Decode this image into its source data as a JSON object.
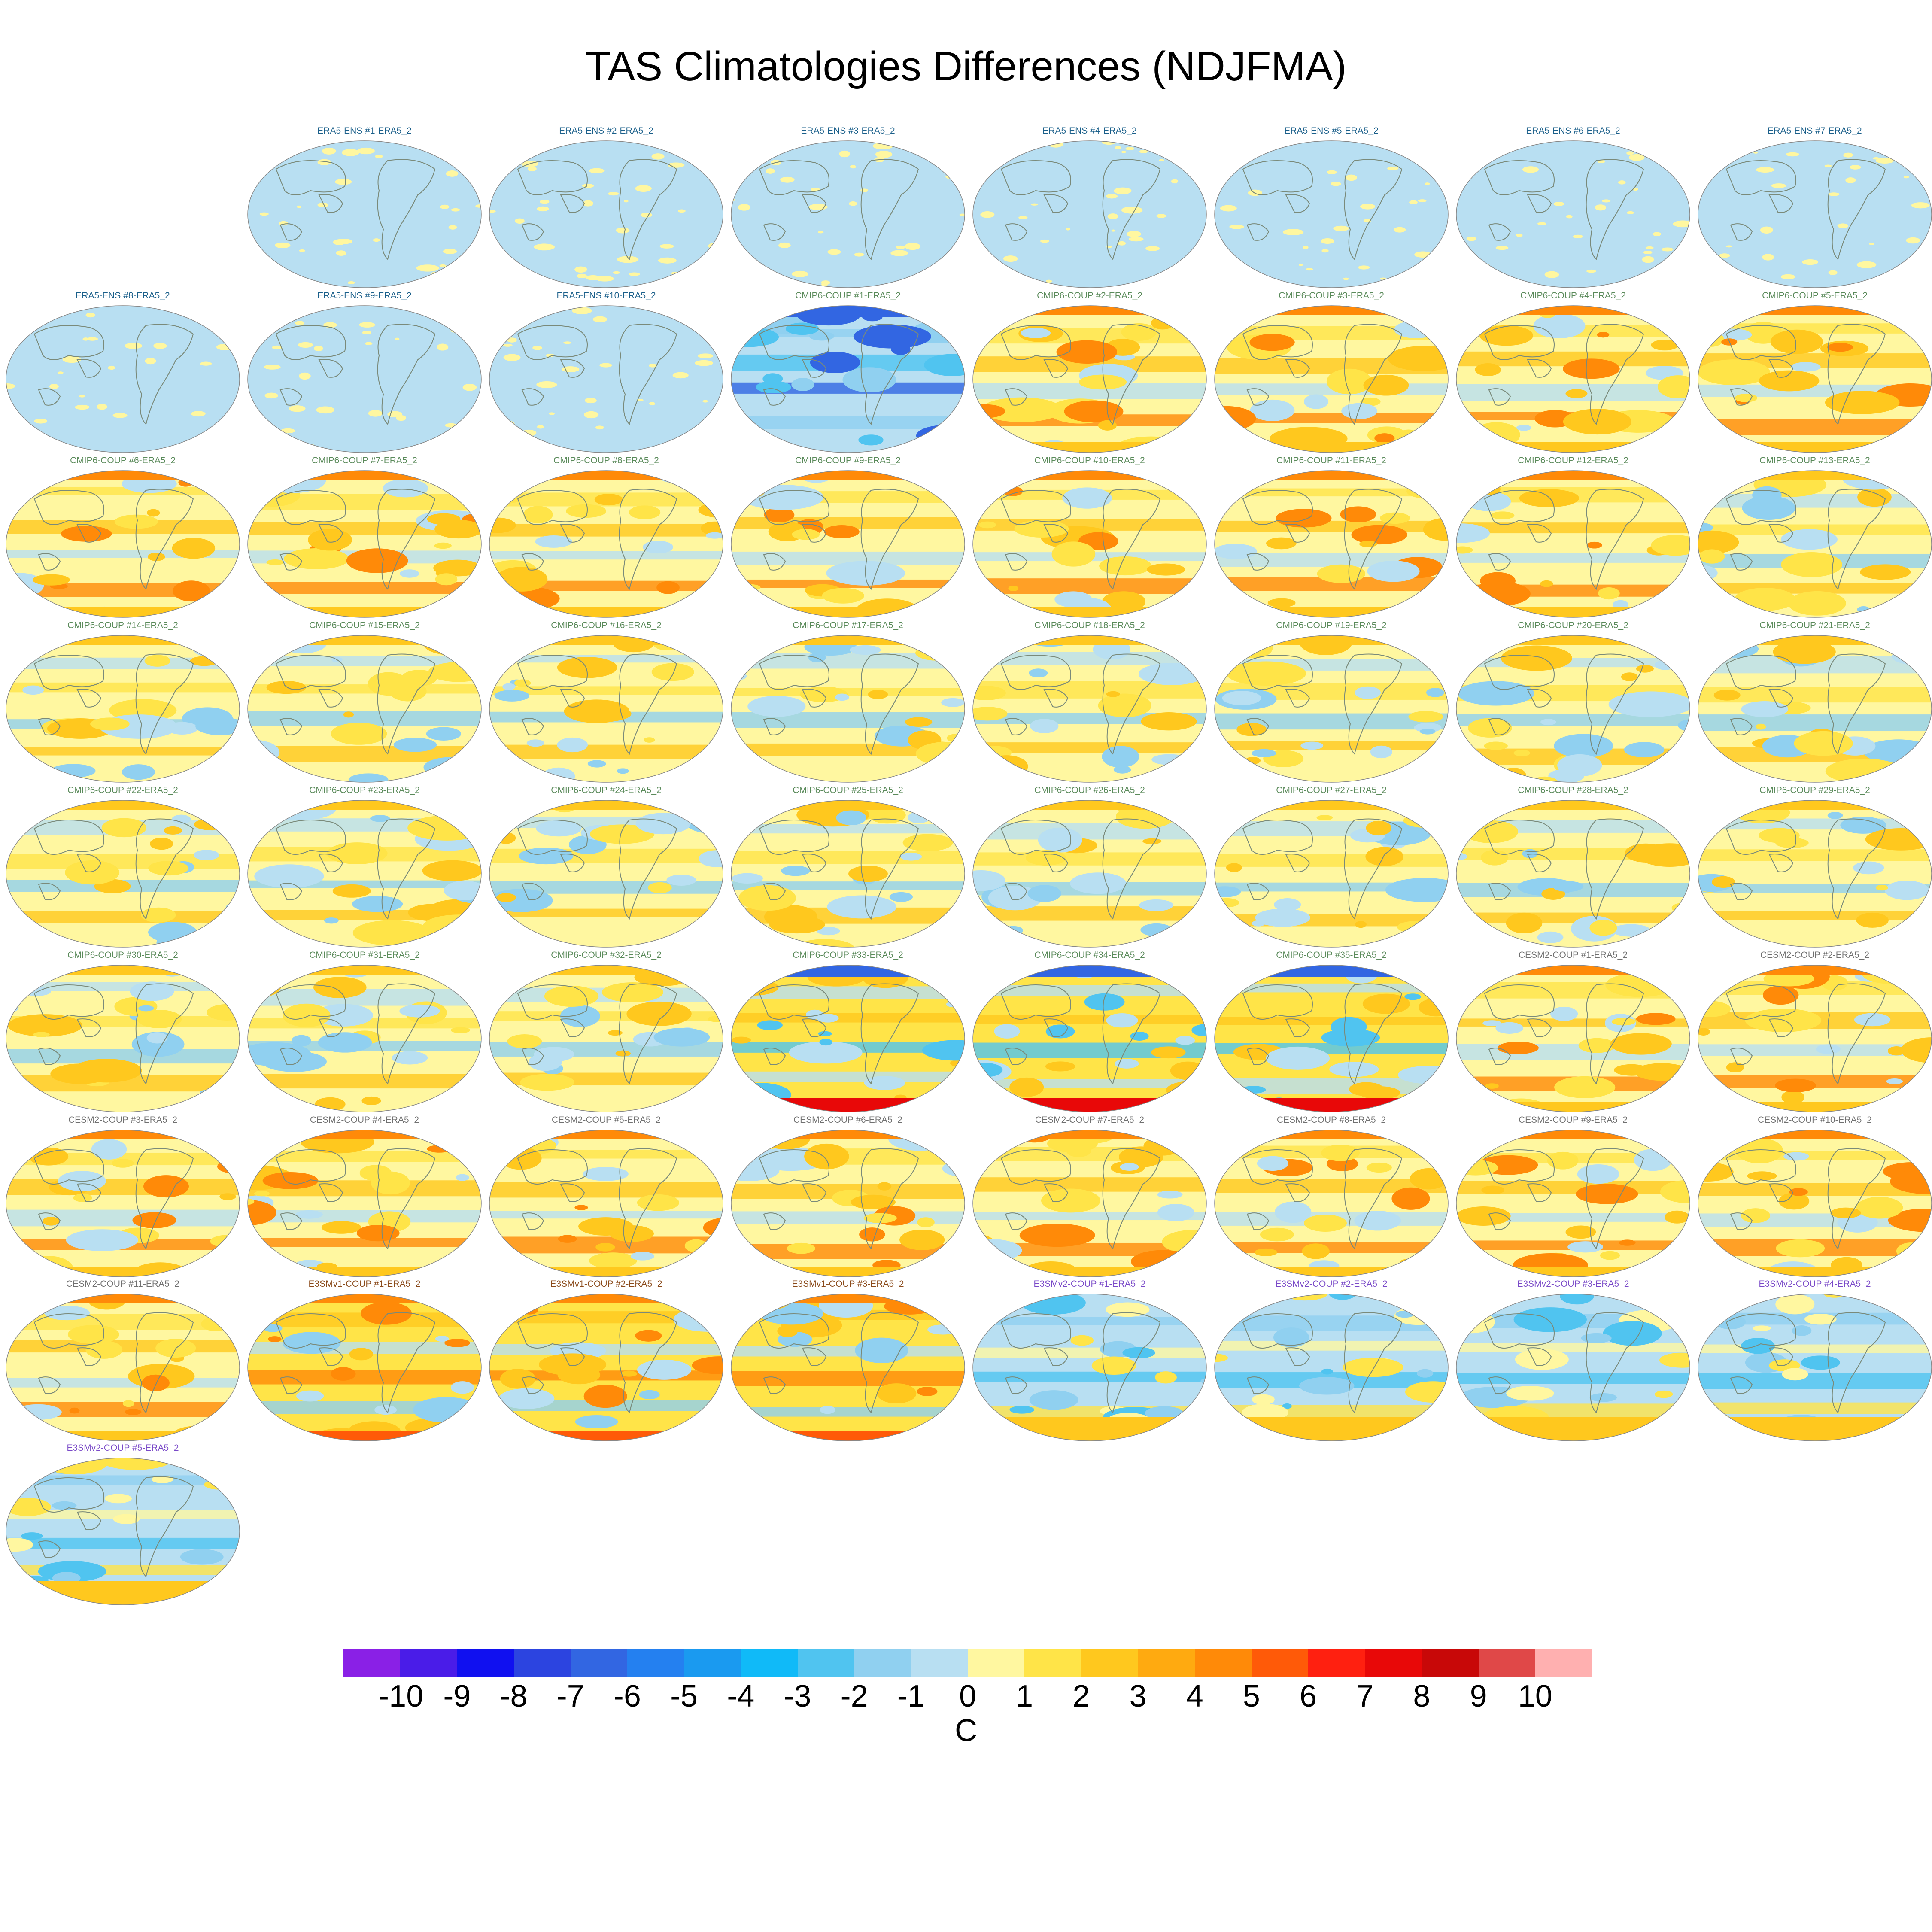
{
  "title": "TAS Climatologies Differences (NDJFMA)",
  "colorbar": {
    "units": "C",
    "ticks": [
      "-10",
      "-9",
      "-8",
      "-7",
      "-6",
      "-5",
      "-4",
      "-3",
      "-2",
      "-1",
      "0",
      "1",
      "2",
      "3",
      "4",
      "5",
      "6",
      "7",
      "8",
      "9",
      "10"
    ],
    "colors": [
      "#8a20e6",
      "#4a1ce8",
      "#1010f0",
      "#2c44e0",
      "#3266e2",
      "#2480f0",
      "#1a9af0",
      "#10baf8",
      "#50c4f0",
      "#90d0f0",
      "#b8dff2",
      "#fff7a0",
      "#ffe448",
      "#ffc81e",
      "#ffaa10",
      "#ff8a08",
      "#ff5a08",
      "#ff2010",
      "#e80808",
      "#c80808",
      "#e04848",
      "#ffb0b0"
    ]
  },
  "chart_data": {
    "type": "heatmap",
    "title": "TAS Climatologies Differences (NDJFMA)",
    "units": "C",
    "levels": [
      -10,
      -9,
      -8,
      -7,
      -6,
      -5,
      -4,
      -3,
      -2,
      -1,
      0,
      1,
      2,
      3,
      4,
      5,
      6,
      7,
      8,
      9,
      10
    ],
    "panels": [
      {
        "label": "ERA5-ENS    #1-ERA5_2",
        "group": "era5ens"
      },
      {
        "label": "ERA5-ENS    #2-ERA5_2",
        "group": "era5ens"
      },
      {
        "label": "ERA5-ENS    #3-ERA5_2",
        "group": "era5ens"
      },
      {
        "label": "ERA5-ENS    #4-ERA5_2",
        "group": "era5ens"
      },
      {
        "label": "ERA5-ENS    #5-ERA5_2",
        "group": "era5ens"
      },
      {
        "label": "ERA5-ENS    #6-ERA5_2",
        "group": "era5ens"
      },
      {
        "label": "ERA5-ENS    #7-ERA5_2",
        "group": "era5ens"
      },
      {
        "label": "ERA5-ENS    #8-ERA5_2",
        "group": "era5ens"
      },
      {
        "label": "ERA5-ENS    #9-ERA5_2",
        "group": "era5ens"
      },
      {
        "label": "ERA5-ENS    #10-ERA5_2",
        "group": "era5ens"
      },
      {
        "label": "CMIP6-COUP  #1-ERA5_2",
        "group": "cmip6",
        "style": "cold"
      },
      {
        "label": "CMIP6-COUP  #2-ERA5_2",
        "group": "cmip6",
        "style": "warm"
      },
      {
        "label": "CMIP6-COUP  #3-ERA5_2",
        "group": "cmip6",
        "style": "warm"
      },
      {
        "label": "CMIP6-COUP  #4-ERA5_2",
        "group": "cmip6",
        "style": "warm"
      },
      {
        "label": "CMIP6-COUP  #5-ERA5_2",
        "group": "cmip6",
        "style": "warm"
      },
      {
        "label": "CMIP6-COUP  #6-ERA5_2",
        "group": "cmip6",
        "style": "warm"
      },
      {
        "label": "CMIP6-COUP  #7-ERA5_2",
        "group": "cmip6",
        "style": "warm"
      },
      {
        "label": "CMIP6-COUP  #8-ERA5_2",
        "group": "cmip6",
        "style": "warm"
      },
      {
        "label": "CMIP6-COUP  #9-ERA5_2",
        "group": "cmip6",
        "style": "warm"
      },
      {
        "label": "CMIP6-COUP  #10-ERA5_2",
        "group": "cmip6",
        "style": "warm"
      },
      {
        "label": "CMIP6-COUP  #11-ERA5_2",
        "group": "cmip6",
        "style": "warm"
      },
      {
        "label": "CMIP6-COUP  #12-ERA5_2",
        "group": "cmip6",
        "style": "warm"
      },
      {
        "label": "CMIP6-COUP  #13-ERA5_2",
        "group": "cmip6",
        "style": "mixed"
      },
      {
        "label": "CMIP6-COUP  #14-ERA5_2",
        "group": "cmip6",
        "style": "mixed"
      },
      {
        "label": "CMIP6-COUP  #15-ERA5_2",
        "group": "cmip6",
        "style": "mixed"
      },
      {
        "label": "CMIP6-COUP  #16-ERA5_2",
        "group": "cmip6",
        "style": "mixed"
      },
      {
        "label": "CMIP6-COUP  #17-ERA5_2",
        "group": "cmip6",
        "style": "mixed"
      },
      {
        "label": "CMIP6-COUP  #18-ERA5_2",
        "group": "cmip6",
        "style": "mixed"
      },
      {
        "label": "CMIP6-COUP  #19-ERA5_2",
        "group": "cmip6",
        "style": "mixed"
      },
      {
        "label": "CMIP6-COUP  #20-ERA5_2",
        "group": "cmip6",
        "style": "mixed"
      },
      {
        "label": "CMIP6-COUP  #21-ERA5_2",
        "group": "cmip6",
        "style": "mixed"
      },
      {
        "label": "CMIP6-COUP  #22-ERA5_2",
        "group": "cmip6",
        "style": "mixed"
      },
      {
        "label": "CMIP6-COUP  #23-ERA5_2",
        "group": "cmip6",
        "style": "mixed"
      },
      {
        "label": "CMIP6-COUP  #24-ERA5_2",
        "group": "cmip6",
        "style": "mixed"
      },
      {
        "label": "CMIP6-COUP  #25-ERA5_2",
        "group": "cmip6",
        "style": "mixed"
      },
      {
        "label": "CMIP6-COUP  #26-ERA5_2",
        "group": "cmip6",
        "style": "mixed"
      },
      {
        "label": "CMIP6-COUP  #27-ERA5_2",
        "group": "cmip6",
        "style": "mixed"
      },
      {
        "label": "CMIP6-COUP  #28-ERA5_2",
        "group": "cmip6",
        "style": "mixed"
      },
      {
        "label": "CMIP6-COUP  #29-ERA5_2",
        "group": "cmip6",
        "style": "mixed"
      },
      {
        "label": "CMIP6-COUP  #30-ERA5_2",
        "group": "cmip6",
        "style": "mixed"
      },
      {
        "label": "CMIP6-COUP  #31-ERA5_2",
        "group": "cmip6",
        "style": "mixed"
      },
      {
        "label": "CMIP6-COUP  #32-ERA5_2",
        "group": "cmip6",
        "style": "mixed"
      },
      {
        "label": "CMIP6-COUP  #33-ERA5_2",
        "group": "cmip6",
        "style": "coldpole"
      },
      {
        "label": "CMIP6-COUP  #34-ERA5_2",
        "group": "cmip6",
        "style": "coldpole"
      },
      {
        "label": "CMIP6-COUP  #35-ERA5_2",
        "group": "cmip6",
        "style": "coldpole"
      },
      {
        "label": "CESM2-COUP  #1-ERA5_2",
        "group": "cesm2",
        "style": "warm"
      },
      {
        "label": "CESM2-COUP  #2-ERA5_2",
        "group": "cesm2",
        "style": "warm"
      },
      {
        "label": "CESM2-COUP  #3-ERA5_2",
        "group": "cesm2",
        "style": "warm"
      },
      {
        "label": "CESM2-COUP  #4-ERA5_2",
        "group": "cesm2",
        "style": "warm"
      },
      {
        "label": "CESM2-COUP  #5-ERA5_2",
        "group": "cesm2",
        "style": "warm"
      },
      {
        "label": "CESM2-COUP  #6-ERA5_2",
        "group": "cesm2",
        "style": "warm"
      },
      {
        "label": "CESM2-COUP  #7-ERA5_2",
        "group": "cesm2",
        "style": "warm"
      },
      {
        "label": "CESM2-COUP  #8-ERA5_2",
        "group": "cesm2",
        "style": "warm"
      },
      {
        "label": "CESM2-COUP  #9-ERA5_2",
        "group": "cesm2",
        "style": "warm"
      },
      {
        "label": "CESM2-COUP  #10-ERA5_2",
        "group": "cesm2",
        "style": "warm"
      },
      {
        "label": "CESM2-COUP  #11-ERA5_2",
        "group": "cesm2",
        "style": "warm"
      },
      {
        "label": "E3SMv1-COUP  #1-ERA5_2",
        "group": "e3smv1",
        "style": "hot"
      },
      {
        "label": "E3SMv1-COUP  #2-ERA5_2",
        "group": "e3smv1",
        "style": "hot"
      },
      {
        "label": "E3SMv1-COUP  #3-ERA5_2",
        "group": "e3smv1",
        "style": "hot"
      },
      {
        "label": "E3SMv2-COUP  #1-ERA5_2",
        "group": "e3smv2",
        "style": "coolmix"
      },
      {
        "label": "E3SMv2-COUP  #2-ERA5_2",
        "group": "e3smv2",
        "style": "coolmix"
      },
      {
        "label": "E3SMv2-COUP  #3-ERA5_2",
        "group": "e3smv2",
        "style": "coolmix"
      },
      {
        "label": "E3SMv2-COUP  #4-ERA5_2",
        "group": "e3smv2",
        "style": "coolmix"
      },
      {
        "label": "E3SMv2-COUP  #5-ERA5_2",
        "group": "e3smv2",
        "style": "coolmix"
      }
    ]
  },
  "group_colors": {
    "era5ens": "#1a5f8a",
    "cmip6": "#5a8a5a",
    "cesm2": "#707070",
    "e3smv1": "#8a4a1a",
    "e3smv2": "#7a4ac8"
  }
}
